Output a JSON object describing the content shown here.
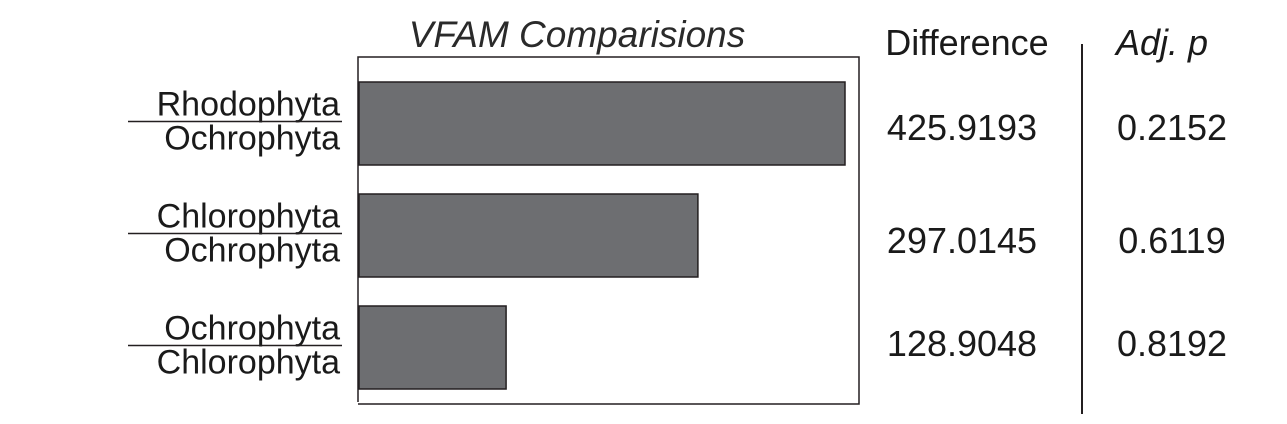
{
  "chart_data": {
    "type": "bar",
    "orientation": "horizontal",
    "title": "VFAM Comparisions",
    "categories": [
      {
        "top": "Rhodophyta",
        "bottom": "Ochrophyta"
      },
      {
        "top": "Chlorophyta",
        "bottom": "Ochrophyta"
      },
      {
        "top": "Ochrophyta",
        "bottom": "Chlorophyta"
      }
    ],
    "values": [
      425.9193,
      297.0145,
      128.9048
    ],
    "difference_labels": [
      "425.9193",
      "297.0145",
      "128.9048"
    ],
    "adj_p_labels": [
      "0.2152",
      "0.6119",
      "0.8192"
    ],
    "columns": {
      "difference": "Difference",
      "adj_p": "Adj. p"
    },
    "xlim": [
      0,
      441.9
    ],
    "grid": false,
    "colors": {
      "bar": "#6d6e71",
      "bar_stroke": "#231f20",
      "frame": "#231f20"
    }
  }
}
